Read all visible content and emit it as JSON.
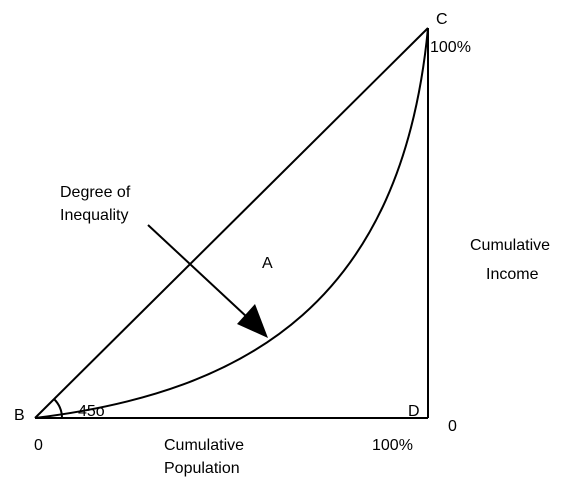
{
  "points": {
    "b": "B",
    "c": "C",
    "d": "D"
  },
  "region": "A",
  "annotation": [
    "Degree of",
    "Inequality"
  ],
  "angle": "45o",
  "y_axis": {
    "label": [
      "Cumulative",
      "Income"
    ],
    "top": "100%",
    "bottom": "0"
  },
  "x_axis": {
    "label": [
      "Cumulative",
      "Population"
    ],
    "left": "0",
    "right": "100%"
  }
}
